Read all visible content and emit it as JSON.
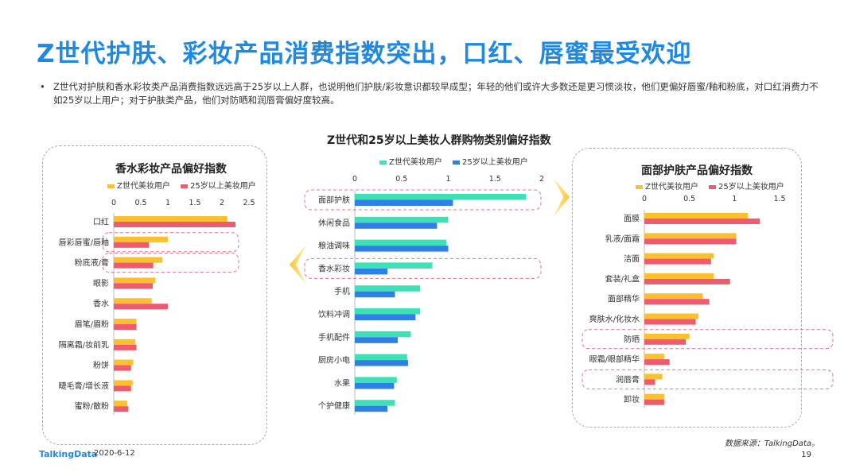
{
  "title": "Z世代护肤、彩妆产品消费指数突出，口红、唇蜜最受欢迎",
  "bullet": "Z世代对护肤和香水彩妆类产品消费指数远远高于25岁以上人群，也说明他们护肤/彩妆意识都较早成型；年轻的他们或许大多数还是更习惯淡妆，他们更偏好唇蜜/釉和粉底，对口红消费力不如25岁以上用户；对于护肤类产品，他们对防晒和润唇膏偏好度较高。",
  "bullet_mark": "•",
  "footer": {
    "logo": "TalkingData",
    "date": "2020-6-12",
    "source": "数据来源：TalkingData。",
    "page": "19"
  },
  "colors": {
    "z": "#fbc02d",
    "over25": "#ef5a6f",
    "z_center": "#3ee0b5",
    "over25_center": "#2f7fe8"
  },
  "chart_data": [
    {
      "type": "bar",
      "orientation": "horizontal",
      "title": "香水彩妆产品偏好指数",
      "categories": [
        "口红",
        "唇彩唇蜜/唇釉",
        "粉底液/膏",
        "眼影",
        "香水",
        "眉笔/眉粉",
        "隔离霜/妆前乳",
        "粉饼",
        "睫毛膏/增长液",
        "蜜粉/散粉"
      ],
      "series": [
        {
          "name": "Z世代美妆用户",
          "values": [
            2.1,
            1.0,
            0.9,
            0.77,
            0.7,
            0.42,
            0.4,
            0.36,
            0.35,
            0.25
          ]
        },
        {
          "name": "25岁以上美妆用户",
          "values": [
            2.25,
            0.65,
            0.73,
            0.72,
            1.0,
            0.42,
            0.42,
            0.32,
            0.32,
            0.27
          ]
        }
      ],
      "xticks": [
        "0",
        "0.5",
        "1",
        "1.5",
        "2",
        "2.5"
      ],
      "xlim": [
        0,
        2.5
      ],
      "legend": "top",
      "highlighted": [
        "唇彩唇蜜/唇釉",
        "粉底液/膏"
      ]
    },
    {
      "type": "bar",
      "orientation": "horizontal",
      "title": "Z世代和25岁以上美妆人群购物类别偏好指数",
      "categories": [
        "面部护肤",
        "休闲食品",
        "粮油调味",
        "香水彩妆",
        "手机",
        "饮料冲调",
        "手机配件",
        "厨房小电",
        "水果",
        "个护健康"
      ],
      "series": [
        {
          "name": "Z世代美妆用户",
          "values": [
            1.83,
            1.0,
            0.98,
            0.83,
            0.7,
            0.7,
            0.6,
            0.56,
            0.45,
            0.43
          ]
        },
        {
          "name": "25岁以上美妆用户",
          "values": [
            1.05,
            0.88,
            1.0,
            0.35,
            0.43,
            0.65,
            0.46,
            0.57,
            0.42,
            0.35
          ]
        }
      ],
      "xticks": [
        "0",
        "0.5",
        "1",
        "1.5",
        "2"
      ],
      "xlim": [
        0,
        2
      ],
      "legend": "top",
      "highlighted": [
        "面部护肤",
        "香水彩妆"
      ]
    },
    {
      "type": "bar",
      "orientation": "horizontal",
      "title": "面部护肤产品偏好指数",
      "categories": [
        "面膜",
        "乳液/面霜",
        "洁面",
        "套装/礼盒",
        "面部精华",
        "爽肤水/化妆水",
        "防晒",
        "眼霜/眼部精华",
        "润唇膏",
        "卸妆"
      ],
      "series": [
        {
          "name": "Z世代美妆用户",
          "values": [
            1.15,
            1.02,
            0.77,
            0.77,
            0.65,
            0.6,
            0.5,
            0.22,
            0.2,
            0.22
          ]
        },
        {
          "name": "25岁以上美妆用户",
          "values": [
            1.28,
            1.02,
            0.74,
            0.95,
            0.72,
            0.57,
            0.46,
            0.28,
            0.12,
            0.22
          ]
        }
      ],
      "xticks": [
        "0",
        "0.5",
        "1",
        "1.5"
      ],
      "xlim": [
        0,
        1.5
      ],
      "legend": "top",
      "highlighted": [
        "防晒",
        "润唇膏"
      ]
    }
  ]
}
